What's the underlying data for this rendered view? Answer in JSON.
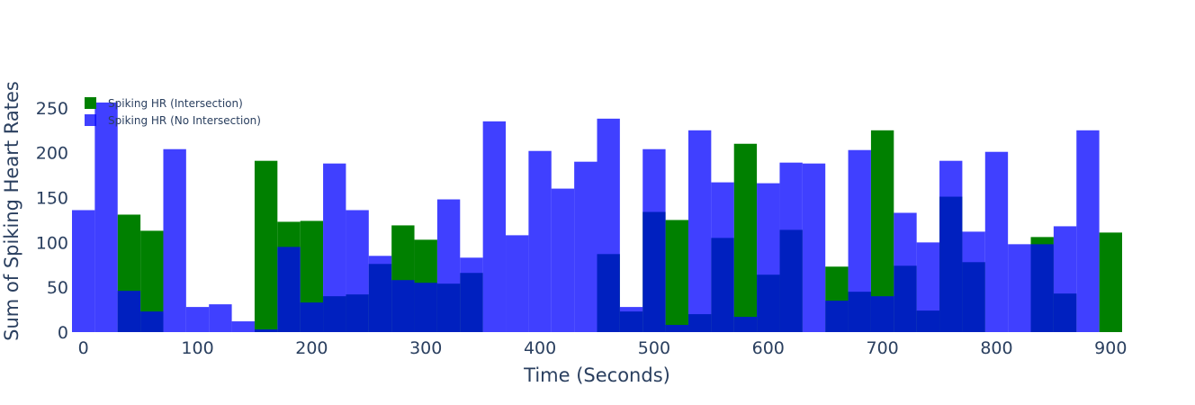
{
  "chart_data": {
    "type": "bar",
    "barmode": "overlay",
    "xlabel": "Time (Seconds)",
    "ylabel": "Sum of Spiking Heart Rates",
    "xlim": [
      -10,
      910
    ],
    "ylim": [
      0,
      280
    ],
    "xticks": [
      0,
      100,
      200,
      300,
      400,
      500,
      600,
      700,
      800,
      900
    ],
    "yticks": [
      0,
      50,
      100,
      150,
      200,
      250
    ],
    "grid": false,
    "legend_position": "top-left",
    "bin_width": 20,
    "x": [
      0,
      20,
      40,
      60,
      80,
      100,
      120,
      140,
      160,
      180,
      200,
      220,
      240,
      260,
      280,
      300,
      320,
      340,
      360,
      380,
      400,
      420,
      440,
      460,
      480,
      500,
      520,
      540,
      560,
      580,
      600,
      620,
      640,
      660,
      680,
      700,
      720,
      740,
      760,
      780,
      800,
      820,
      840,
      860,
      880,
      900
    ],
    "series": [
      {
        "name": "Spiking HR (Intersection)",
        "color": "#008000",
        "opacity": 1.0,
        "values": [
          0,
          0,
          131,
          113,
          0,
          0,
          0,
          0,
          191,
          123,
          124,
          40,
          42,
          76,
          119,
          103,
          54,
          66,
          0,
          0,
          0,
          0,
          0,
          87,
          23,
          134,
          125,
          20,
          105,
          210,
          64,
          114,
          0,
          73,
          45,
          225,
          74,
          24,
          151,
          78,
          0,
          0,
          106,
          43,
          0,
          111
        ]
      },
      {
        "name": "Spiking HR (No Intersection)",
        "color": "#0000ff",
        "opacity": 0.75,
        "values": [
          136,
          256,
          46,
          23,
          204,
          28,
          31,
          12,
          3,
          95,
          33,
          188,
          136,
          85,
          58,
          55,
          148,
          83,
          235,
          108,
          202,
          160,
          190,
          238,
          28,
          204,
          8,
          225,
          167,
          17,
          166,
          189,
          188,
          35,
          203,
          40,
          133,
          100,
          191,
          112,
          201,
          98,
          98,
          118,
          225,
          0
        ]
      }
    ]
  }
}
